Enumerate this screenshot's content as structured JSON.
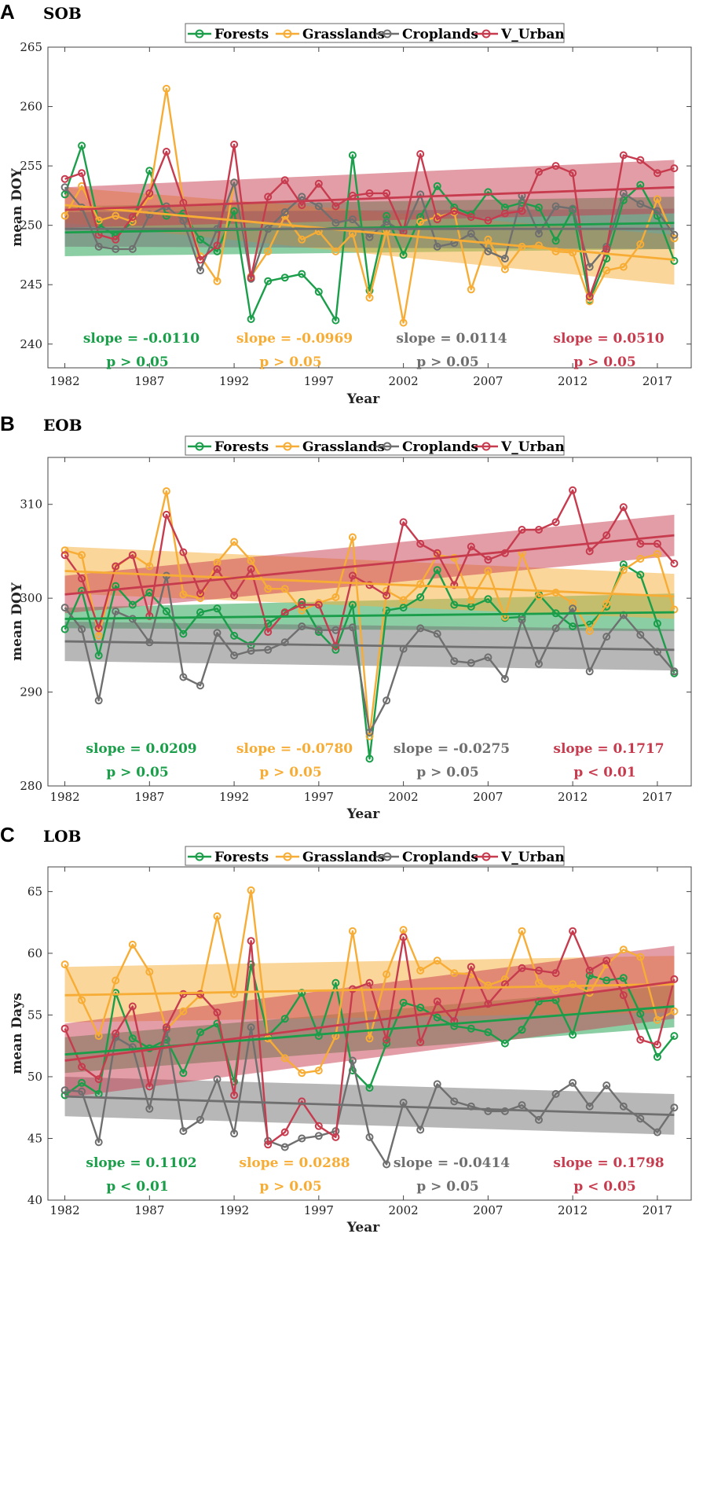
{
  "colors": {
    "Forests": "#1a9e4a",
    "Grasslands": "#f7ad35",
    "Croplands": "#6f6f6f",
    "V_Urban": "#c73b4e"
  },
  "chart_data": [
    {
      "type": "line",
      "letter": "A",
      "title": "SOB",
      "xlabel": "Year",
      "ylabel": "mean DOY",
      "ylim": [
        238,
        265
      ],
      "yticks": [
        240,
        245,
        250,
        255,
        260,
        265
      ],
      "xlim": [
        1981,
        2019
      ],
      "xticks": [
        1982,
        1987,
        1992,
        1997,
        2002,
        2007,
        2012,
        2017
      ],
      "legend": [
        "Forests",
        "Grasslands",
        "Croplands",
        "V_Urban"
      ],
      "x": [
        1982,
        1983,
        1984,
        1985,
        1986,
        1987,
        1988,
        1989,
        1990,
        1991,
        1992,
        1993,
        1994,
        1995,
        1996,
        1997,
        1998,
        1999,
        2000,
        2001,
        2002,
        2003,
        2004,
        2005,
        2006,
        2007,
        2008,
        2009,
        2010,
        2011,
        2012,
        2013,
        2014,
        2015,
        2016,
        2017,
        2018
      ],
      "series": [
        {
          "name": "Forests",
          "values": [
            252.6,
            256.7,
            250.1,
            249.1,
            250.3,
            254.6,
            250.8,
            251.0,
            248.8,
            247.8,
            251.2,
            242.1,
            245.3,
            245.6,
            245.9,
            244.4,
            242.0,
            255.9,
            244.5,
            250.8,
            247.5,
            250.7,
            253.3,
            251.5,
            250.9,
            252.8,
            251.5,
            251.9,
            251.5,
            248.7,
            251.3,
            243.7,
            247.2,
            252.1,
            253.4,
            250.8,
            247.0
          ],
          "trend": [
            249.4,
            250.2
          ],
          "band": [
            [
              247.4,
              251.6
            ],
            [
              248.0,
              252.4
            ]
          ],
          "slope": "slope = -0.0110",
          "p": "p > 0.05"
        },
        {
          "name": "Grasslands",
          "values": [
            250.8,
            253.3,
            250.4,
            250.8,
            250.3,
            252.5,
            261.5,
            251.9,
            247.4,
            245.3,
            253.6,
            245.7,
            247.8,
            250.8,
            248.8,
            249.5,
            247.8,
            249.3,
            243.9,
            249.6,
            241.8,
            250.3,
            250.7,
            251.1,
            244.6,
            248.8,
            246.3,
            248.2,
            248.3,
            247.8,
            247.7,
            243.6,
            246.2,
            246.5,
            248.4,
            252.2,
            248.9
          ],
          "trend": [
            251.7,
            247.1
          ],
          "band": [
            [
              250.2,
              253.2
            ],
            [
              245.0,
              249.2
            ]
          ],
          "slope": "slope = -0.0969",
          "p": "p > 0.05"
        },
        {
          "name": "Croplands",
          "values": [
            253.2,
            251.5,
            248.2,
            248.0,
            248.0,
            250.9,
            251.6,
            250.4,
            246.2,
            249.7,
            253.6,
            245.5,
            249.7,
            251.1,
            252.4,
            251.6,
            250.2,
            250.5,
            249.0,
            250.3,
            249.4,
            252.6,
            248.2,
            248.5,
            249.3,
            247.8,
            247.2,
            252.5,
            249.3,
            251.6,
            251.4,
            246.5,
            248.2,
            252.7,
            251.8,
            251.2,
            249.2
          ],
          "trend": [
            249.7,
            249.7
          ],
          "band": [
            [
              248.2,
              251.1
            ],
            [
              248.0,
              251.4
            ]
          ],
          "slope": "slope = 0.0114",
          "p": "p > 0.05"
        },
        {
          "name": "V_Urban",
          "values": [
            253.9,
            254.4,
            249.2,
            248.8,
            250.7,
            252.7,
            256.2,
            251.9,
            247.1,
            248.3,
            256.8,
            245.6,
            252.4,
            253.8,
            251.7,
            253.5,
            251.6,
            252.5,
            252.7,
            252.7,
            249.5,
            256.0,
            250.5,
            251.2,
            250.7,
            250.4,
            251.0,
            251.2,
            254.5,
            255.0,
            254.4,
            244.0,
            248.0,
            255.9,
            255.5,
            254.4,
            254.8
          ],
          "trend": [
            251.3,
            253.2
          ],
          "band": [
            [
              249.8,
              253.2
            ],
            [
              251.0,
              255.5
            ]
          ],
          "slope": "slope = 0.0510",
          "p": "p > 0.05"
        }
      ]
    },
    {
      "type": "line",
      "letter": "B",
      "title": "EOB",
      "xlabel": "Year",
      "ylabel": "mean DOY",
      "ylim": [
        280,
        315
      ],
      "yticks": [
        280,
        290,
        300,
        310
      ],
      "xlim": [
        1981,
        2019
      ],
      "xticks": [
        1982,
        1987,
        1992,
        1997,
        2002,
        2007,
        2012,
        2017
      ],
      "legend": [
        "Forests",
        "Grasslands",
        "Croplands",
        "V_Urban"
      ],
      "x": [
        1982,
        1983,
        1984,
        1985,
        1986,
        1987,
        1988,
        1989,
        1990,
        1991,
        1992,
        1993,
        1994,
        1995,
        1996,
        1997,
        1998,
        1999,
        2000,
        2001,
        2002,
        2003,
        2004,
        2005,
        2006,
        2007,
        2008,
        2009,
        2010,
        2011,
        2012,
        2013,
        2014,
        2015,
        2016,
        2017,
        2018
      ],
      "series": [
        {
          "name": "Forests",
          "values": [
            296.7,
            300.8,
            293.9,
            301.3,
            299.3,
            300.6,
            298.6,
            296.2,
            298.5,
            298.9,
            296.0,
            295.0,
            297.3,
            298.4,
            299.6,
            296.4,
            294.5,
            299.3,
            282.9,
            298.7,
            299.0,
            300.1,
            303.0,
            299.3,
            299.1,
            299.9,
            297.9,
            298.0,
            300.4,
            298.4,
            297.0,
            297.2,
            299.1,
            303.6,
            302.5,
            297.3,
            292.0
          ],
          "trend": [
            297.8,
            298.5
          ],
          "band": [
            [
              296.8,
              299.0
            ],
            [
              296.5,
              300.5
            ]
          ],
          "slope": "slope = 0.0209",
          "p": "p > 0.05"
        },
        {
          "name": "Grasslands",
          "values": [
            305.1,
            304.6,
            296.0,
            303.3,
            304.6,
            303.4,
            311.4,
            300.4,
            300.0,
            303.8,
            306.0,
            304.0,
            301.0,
            301.0,
            298.7,
            299.5,
            300.1,
            306.5,
            285.3,
            300.8,
            299.8,
            301.5,
            304.6,
            304.3,
            299.8,
            302.9,
            298.0,
            304.8,
            300.2,
            300.6,
            299.5,
            296.5,
            299.4,
            303.0,
            304.2,
            304.7,
            298.8
          ],
          "trend": [
            302.9,
            300.2
          ],
          "band": [
            [
              300.5,
              305.5
            ],
            [
              297.8,
              302.6
            ]
          ],
          "slope": "slope = -0.0780",
          "p": "p > 0.05"
        },
        {
          "name": "Croplands",
          "values": [
            299.0,
            296.7,
            289.1,
            298.6,
            297.8,
            295.3,
            302.4,
            291.6,
            290.7,
            296.3,
            293.9,
            294.4,
            294.5,
            295.3,
            297.0,
            296.6,
            296.6,
            296.9,
            285.7,
            289.1,
            294.6,
            296.8,
            296.2,
            293.3,
            293.1,
            293.7,
            291.4,
            297.7,
            293.0,
            296.8,
            298.9,
            292.2,
            295.9,
            298.2,
            296.1,
            294.3,
            292.2
          ],
          "trend": [
            295.4,
            294.5
          ],
          "band": [
            [
              293.3,
              297.5
            ],
            [
              292.3,
              296.7
            ]
          ],
          "slope": "slope = -0.0275",
          "p": "p > 0.05"
        },
        {
          "name": "V_Urban",
          "values": [
            304.6,
            302.1,
            296.8,
            303.4,
            304.6,
            298.1,
            308.9,
            304.9,
            300.5,
            303.1,
            300.3,
            303.1,
            296.4,
            298.5,
            299.3,
            299.3,
            294.9,
            302.4,
            301.4,
            300.3,
            308.1,
            305.8,
            304.8,
            301.4,
            305.5,
            304.1,
            304.8,
            307.3,
            307.3,
            308.1,
            311.5,
            305.0,
            306.7,
            309.7,
            305.8,
            305.8,
            303.7
          ],
          "trend": [
            300.4,
            306.7
          ],
          "band": [
            [
              298.4,
              302.4
            ],
            [
              304.5,
              308.9
            ]
          ],
          "slope": "slope = 0.1717",
          "p": "p < 0.01"
        }
      ]
    },
    {
      "type": "line",
      "letter": "C",
      "title": "LOB",
      "xlabel": "Year",
      "ylabel": "mean Days",
      "ylim": [
        40,
        67
      ],
      "yticks": [
        40,
        45,
        50,
        55,
        60,
        65
      ],
      "xlim": [
        1981,
        2019
      ],
      "xticks": [
        1982,
        1987,
        1992,
        1997,
        2002,
        2007,
        2012,
        2017
      ],
      "legend": [
        "Forests",
        "Grasslands",
        "Croplands",
        "V_Urban"
      ],
      "x": [
        1982,
        1983,
        1984,
        1985,
        1986,
        1987,
        1988,
        1989,
        1990,
        1991,
        1992,
        1993,
        1994,
        1995,
        1996,
        1997,
        1998,
        1999,
        2000,
        2001,
        2002,
        2003,
        2004,
        2005,
        2006,
        2007,
        2008,
        2009,
        2010,
        2011,
        2012,
        2013,
        2014,
        2015,
        2016,
        2017,
        2018
      ],
      "series": [
        {
          "name": "Forests",
          "values": [
            48.5,
            49.5,
            48.6,
            56.8,
            53.1,
            52.3,
            53.0,
            50.3,
            53.6,
            54.3,
            49.6,
            59.1,
            53.3,
            54.7,
            56.8,
            53.3,
            57.6,
            50.5,
            49.1,
            52.7,
            56.0,
            55.6,
            54.8,
            54.1,
            53.9,
            53.6,
            52.7,
            53.8,
            56.1,
            56.2,
            53.4,
            58.2,
            57.8,
            58.0,
            55.1,
            51.6,
            53.3
          ],
          "trend": [
            51.8,
            55.7
          ],
          "band": [
            [
              50.3,
              53.2
            ],
            [
              54.0,
              57.4
            ]
          ],
          "slope": "slope = 0.1102",
          "p": "p < 0.01"
        },
        {
          "name": "Grasslands",
          "values": [
            59.1,
            56.2,
            53.3,
            57.8,
            60.7,
            58.5,
            53.8,
            55.3,
            56.6,
            63.0,
            56.7,
            65.1,
            53.1,
            51.5,
            50.3,
            50.5,
            53.3,
            61.8,
            53.1,
            58.3,
            61.9,
            58.6,
            59.4,
            58.4,
            58.3,
            57.4,
            57.9,
            61.8,
            57.6,
            57.0,
            57.5,
            56.8,
            59.1,
            60.3,
            59.7,
            54.6,
            55.3
          ],
          "trend": [
            56.6,
            57.5
          ],
          "band": [
            [
              54.4,
              58.9
            ],
            [
              55.2,
              59.8
            ]
          ],
          "slope": "slope = 0.0288",
          "p": "p > 0.05"
        },
        {
          "name": "Croplands",
          "values": [
            48.9,
            48.8,
            44.7,
            53.2,
            52.4,
            47.4,
            53.8,
            45.6,
            46.5,
            49.8,
            45.4,
            54.0,
            44.8,
            44.3,
            45.0,
            45.2,
            45.6,
            51.3,
            45.1,
            42.9,
            47.9,
            45.7,
            49.4,
            48.0,
            47.6,
            47.2,
            47.2,
            47.7,
            46.5,
            48.6,
            49.5,
            47.6,
            49.3,
            47.6,
            46.6,
            45.5,
            47.5
          ],
          "trend": [
            48.4,
            46.9
          ],
          "band": [
            [
              46.8,
              50.0
            ],
            [
              45.3,
              48.6
            ]
          ],
          "slope": "slope = -0.0414",
          "p": "p > 0.05"
        },
        {
          "name": "V_Urban",
          "values": [
            53.9,
            50.8,
            49.8,
            53.5,
            55.7,
            49.2,
            54.0,
            56.7,
            56.7,
            55.2,
            48.5,
            61.0,
            44.5,
            45.5,
            48.0,
            46.0,
            45.1,
            57.1,
            57.6,
            53.0,
            61.3,
            52.8,
            56.1,
            54.5,
            58.9,
            55.9,
            57.5,
            58.8,
            58.6,
            58.4,
            61.8,
            58.6,
            59.4,
            56.6,
            53.0,
            52.6,
            57.9
          ],
          "trend": [
            51.3,
            57.7
          ],
          "band": [
            [
              48.3,
              54.3
            ],
            [
              54.7,
              60.6
            ]
          ],
          "slope": "slope = 0.1798",
          "p": "p < 0.05"
        }
      ]
    }
  ]
}
